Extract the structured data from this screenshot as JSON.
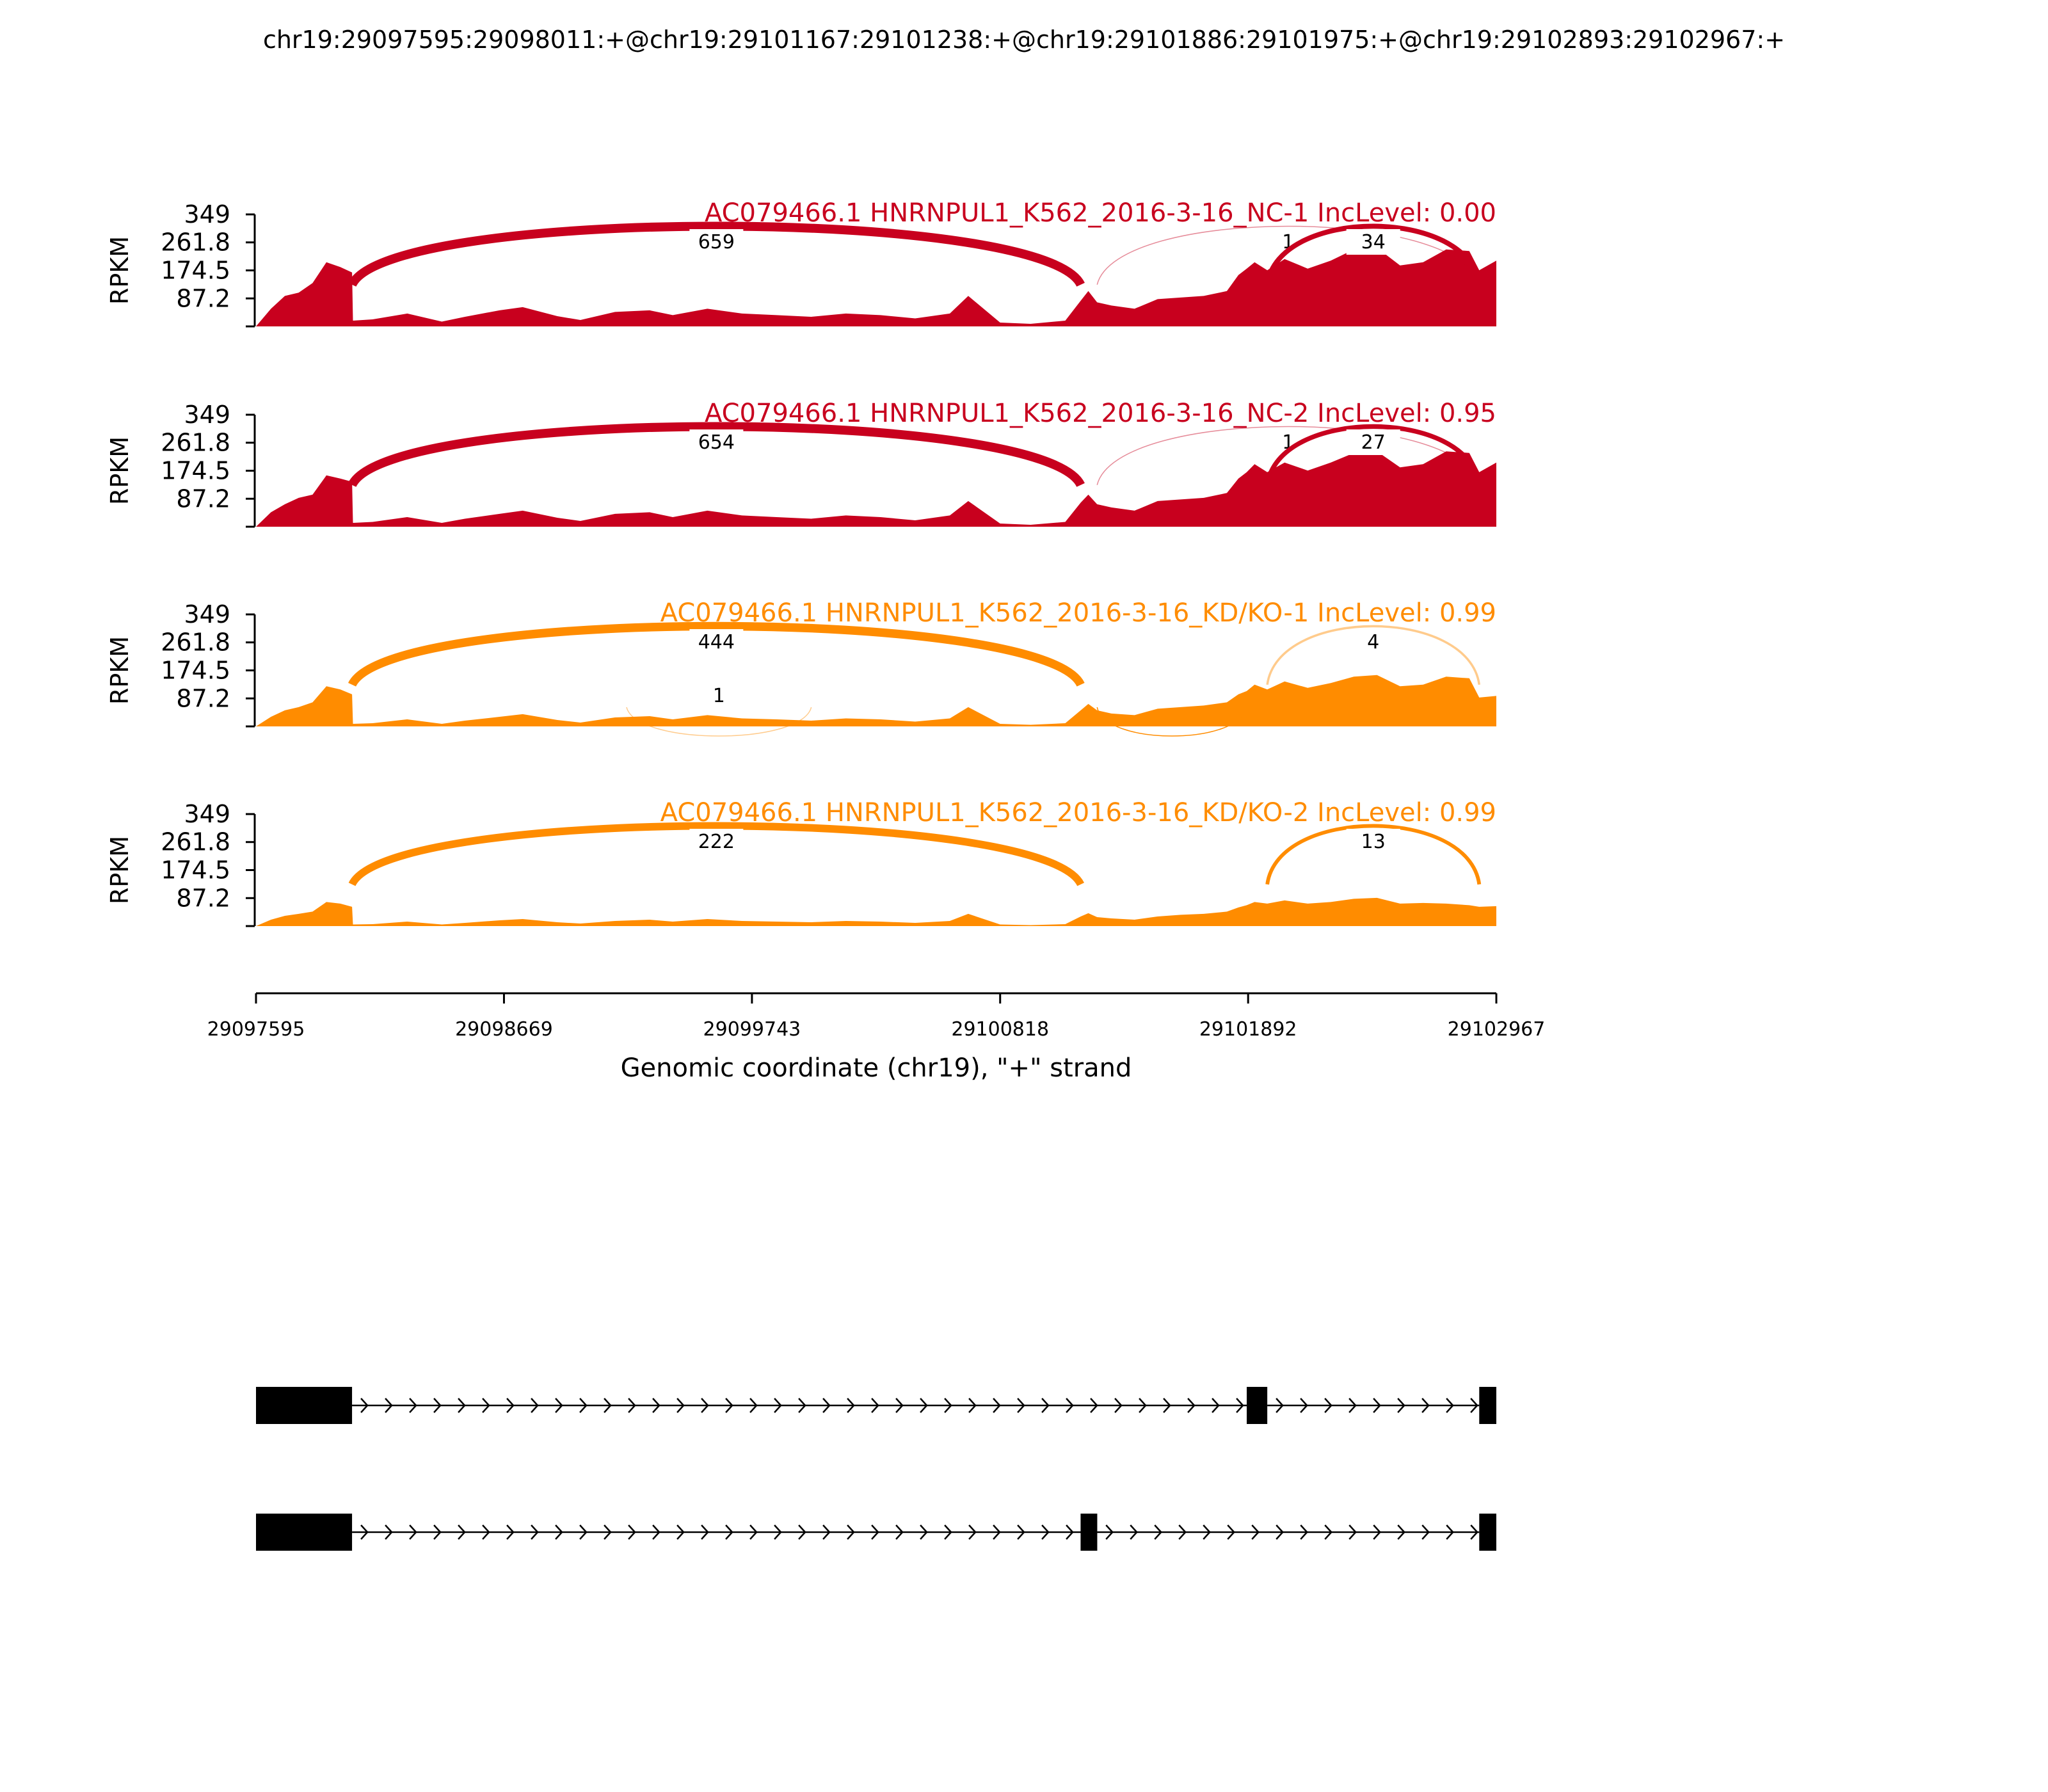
{
  "title": "chr19:29097595:29098011:+@chr19:29101167:29101238:+@chr19:29101886:29101975:+@chr19:29102893:29102967:+",
  "colors": {
    "nc": "#c8001e",
    "kd": "#ff8c00"
  },
  "chart_data": {
    "type": "area",
    "xlim": [
      29097595,
      29102967
    ],
    "ylim": [
      0,
      349
    ],
    "yticks": [
      "349",
      "261.8",
      "174.5",
      "87.2"
    ],
    "ylabel": "RPKM",
    "xticks": [
      "29097595",
      "29098669",
      "29099743",
      "29100818",
      "29101892",
      "29102967"
    ],
    "xlabel": "Genomic coordinate (chr19), \"+\" strand",
    "grid": false,
    "tracks": [
      {
        "label": "AC079466.1 HNRNPUL1_K562_2016-3-16_NC-1 IncLevel: 0.00",
        "group": "nc",
        "coverage_x": [
          29097595,
          29097660,
          29097720,
          29097780,
          29097840,
          29097900,
          29097960,
          29098011,
          29098015,
          29098100,
          29098250,
          29098400,
          29098500,
          29098650,
          29098750,
          29098900,
          29099000,
          29099150,
          29099300,
          29099400,
          29099550,
          29099700,
          29099850,
          29100000,
          29100150,
          29100300,
          29100450,
          29100600,
          29100680,
          29100818,
          29100950,
          29101100,
          29101167,
          29101200,
          29101238,
          29101300,
          29101400,
          29101500,
          29101600,
          29101700,
          29101800,
          29101850,
          29101886,
          29101920,
          29101975,
          29102050,
          29102150,
          29102250,
          29102350,
          29102450,
          29102550,
          29102650,
          29102750,
          29102850,
          29102893,
          29102967
        ],
        "coverage_y": [
          0,
          55,
          95,
          105,
          135,
          200,
          185,
          168,
          18,
          22,
          40,
          15,
          30,
          50,
          60,
          32,
          20,
          45,
          50,
          35,
          55,
          40,
          35,
          30,
          40,
          35,
          25,
          40,
          95,
          12,
          8,
          18,
          80,
          110,
          75,
          65,
          55,
          85,
          90,
          95,
          110,
          160,
          180,
          200,
          175,
          210,
          180,
          205,
          240,
          245,
          190,
          200,
          240,
          235,
          175,
          205
        ],
        "junctions": [
          {
            "from": 29098011,
            "to": 29101167,
            "count": "659",
            "side": "top"
          },
          {
            "from": 29101238,
            "to": 29102893,
            "count": "1",
            "side": "top"
          },
          {
            "from": 29101975,
            "to": 29102893,
            "count": "34",
            "side": "top"
          }
        ]
      },
      {
        "label": "AC079466.1 HNRNPUL1_K562_2016-3-16_NC-2 IncLevel: 0.95",
        "group": "nc",
        "coverage_x": [
          29097595,
          29097660,
          29097720,
          29097780,
          29097840,
          29097900,
          29097960,
          29098011,
          29098015,
          29098100,
          29098250,
          29098400,
          29098500,
          29098650,
          29098750,
          29098900,
          29099000,
          29099150,
          29099300,
          29099400,
          29099550,
          29099700,
          29099850,
          29100000,
          29100150,
          29100300,
          29100450,
          29100600,
          29100680,
          29100818,
          29100950,
          29101100,
          29101167,
          29101200,
          29101238,
          29101300,
          29101400,
          29101500,
          29101600,
          29101700,
          29101800,
          29101850,
          29101886,
          29101920,
          29101975,
          29102050,
          29102150,
          29102250,
          29102350,
          29102450,
          29102550,
          29102650,
          29102750,
          29102850,
          29102893,
          29102967
        ],
        "coverage_y": [
          0,
          45,
          70,
          90,
          100,
          160,
          150,
          140,
          12,
          15,
          30,
          12,
          25,
          40,
          50,
          28,
          18,
          40,
          45,
          30,
          50,
          35,
          30,
          25,
          35,
          30,
          20,
          35,
          80,
          10,
          6,
          15,
          75,
          100,
          70,
          60,
          50,
          80,
          85,
          90,
          105,
          150,
          170,
          195,
          170,
          200,
          175,
          200,
          230,
          235,
          185,
          195,
          235,
          230,
          170,
          200
        ],
        "junctions": [
          {
            "from": 29098011,
            "to": 29101167,
            "count": "654",
            "side": "top"
          },
          {
            "from": 29101238,
            "to": 29102893,
            "count": "1",
            "side": "top"
          },
          {
            "from": 29101975,
            "to": 29102893,
            "count": "27",
            "side": "top"
          }
        ]
      },
      {
        "label": "AC079466.1 HNRNPUL1_K562_2016-3-16_KD/KO-1 IncLevel: 0.99",
        "group": "kd",
        "coverage_x": [
          29097595,
          29097660,
          29097720,
          29097780,
          29097840,
          29097900,
          29097960,
          29098011,
          29098015,
          29098100,
          29098250,
          29098400,
          29098500,
          29098650,
          29098750,
          29098900,
          29099000,
          29099150,
          29099300,
          29099400,
          29099550,
          29099700,
          29099850,
          29100000,
          29100150,
          29100300,
          29100450,
          29100600,
          29100680,
          29100818,
          29100950,
          29101100,
          29101167,
          29101200,
          29101238,
          29101300,
          29101400,
          29101500,
          29101600,
          29101700,
          29101800,
          29101850,
          29101886,
          29101920,
          29101975,
          29102050,
          29102150,
          29102250,
          29102350,
          29102450,
          29102550,
          29102650,
          29102750,
          29102850,
          29102893,
          29102967
        ],
        "coverage_y": [
          0,
          30,
          50,
          60,
          75,
          125,
          115,
          100,
          8,
          10,
          22,
          8,
          18,
          30,
          38,
          20,
          12,
          28,
          32,
          22,
          35,
          25,
          22,
          18,
          25,
          22,
          15,
          25,
          60,
          8,
          5,
          10,
          50,
          70,
          50,
          40,
          35,
          55,
          60,
          65,
          75,
          100,
          110,
          130,
          115,
          140,
          120,
          135,
          155,
          160,
          125,
          130,
          155,
          150,
          90,
          95
        ],
        "junctions": [
          {
            "from": 29098011,
            "to": 29101167,
            "count": "444",
            "side": "top"
          },
          {
            "from": 29099200,
            "to": 29100000,
            "count": "1",
            "side": "bottom"
          },
          {
            "from": 29101238,
            "to": 29101886,
            "count": "",
            "side": "bottom"
          },
          {
            "from": 29101975,
            "to": 29102893,
            "count": "4",
            "side": "top"
          }
        ]
      },
      {
        "label": "AC079466.1 HNRNPUL1_K562_2016-3-16_KD/KO-2 IncLevel: 0.99",
        "group": "kd",
        "coverage_x": [
          29097595,
          29097660,
          29097720,
          29097780,
          29097840,
          29097900,
          29097960,
          29098011,
          29098015,
          29098100,
          29098250,
          29098400,
          29098500,
          29098650,
          29098750,
          29098900,
          29099000,
          29099150,
          29099300,
          29099400,
          29099550,
          29099700,
          29099850,
          29100000,
          29100150,
          29100300,
          29100450,
          29100600,
          29100680,
          29100818,
          29100950,
          29101100,
          29101167,
          29101200,
          29101238,
          29101300,
          29101400,
          29101500,
          29101600,
          29101700,
          29101800,
          29101850,
          29101886,
          29101920,
          29101975,
          29102050,
          29102150,
          29102250,
          29102350,
          29102450,
          29102550,
          29102650,
          29102750,
          29102850,
          29102893,
          29102967
        ],
        "coverage_y": [
          0,
          20,
          32,
          38,
          45,
          75,
          70,
          60,
          5,
          6,
          14,
          5,
          10,
          18,
          22,
          12,
          8,
          16,
          20,
          14,
          22,
          16,
          14,
          12,
          16,
          14,
          10,
          16,
          38,
          5,
          3,
          6,
          30,
          40,
          28,
          24,
          20,
          30,
          35,
          38,
          45,
          58,
          65,
          75,
          70,
          80,
          70,
          75,
          85,
          88,
          70,
          72,
          70,
          65,
          60,
          62
        ],
        "junctions": [
          {
            "from": 29098011,
            "to": 29101167,
            "count": "222",
            "side": "top"
          },
          {
            "from": 29101975,
            "to": 29102893,
            "count": "13",
            "side": "top"
          }
        ]
      }
    ],
    "isoforms": [
      {
        "exons": [
          [
            29097595,
            29098011
          ],
          [
            29101886,
            29101975
          ],
          [
            29102893,
            29102967
          ]
        ]
      },
      {
        "exons": [
          [
            29097595,
            29098011
          ],
          [
            29101167,
            29101238
          ],
          [
            29102893,
            29102967
          ]
        ]
      }
    ]
  }
}
